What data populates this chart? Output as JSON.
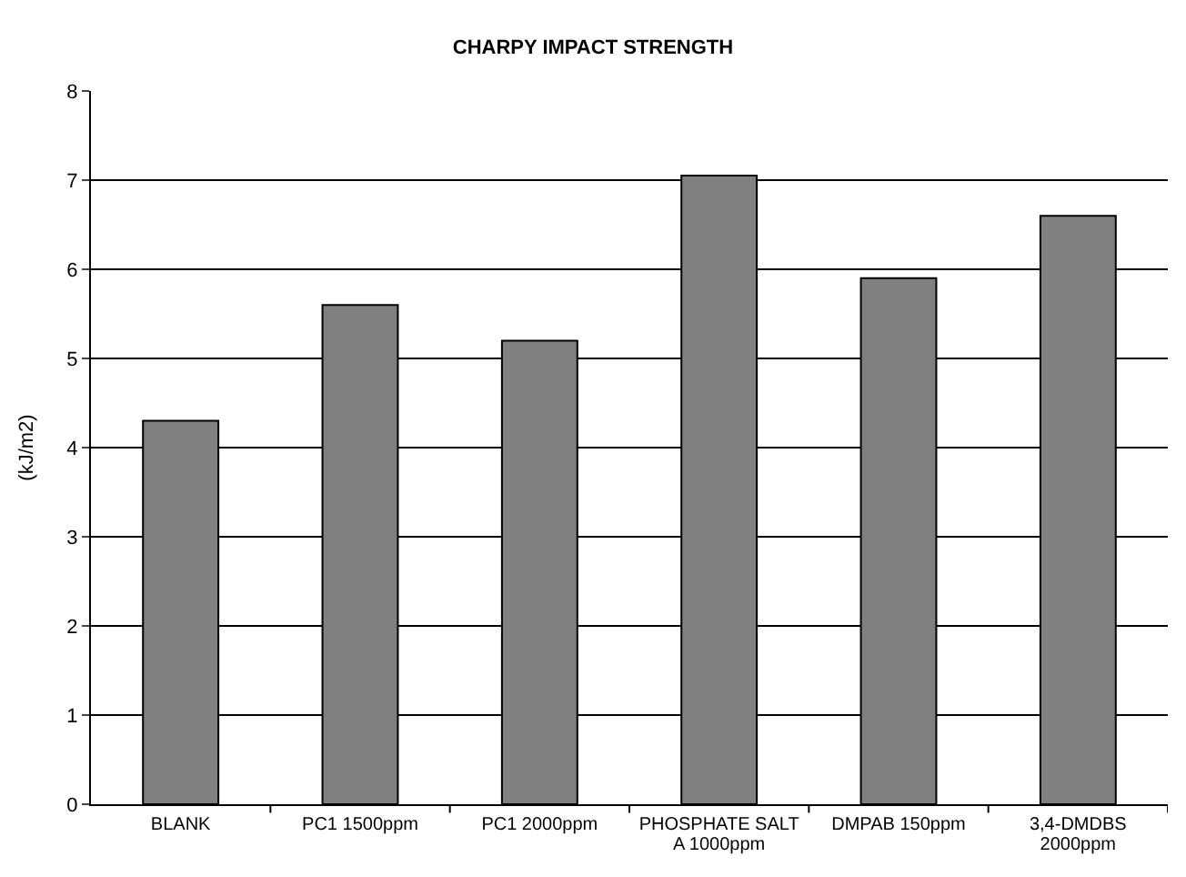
{
  "chart_data": {
    "type": "bar",
    "title": "CHARPY IMPACT STRENGTH",
    "ylabel": "(kJ/m2)",
    "categories": [
      "BLANK",
      "PC1 1500ppm",
      "PC1 2000ppm",
      "PHOSPHATE SALT A 1000ppm",
      "DMPAB 150ppm",
      "3,4-DMDBS 2000ppm"
    ],
    "values": [
      4.3,
      5.6,
      5.2,
      7.05,
      5.9,
      6.6
    ],
    "color": "#808080",
    "ylim": [
      0,
      8
    ],
    "yticks": [
      0,
      1,
      2,
      3,
      4,
      5,
      6,
      7,
      8
    ],
    "grid": "y",
    "legend": false
  }
}
